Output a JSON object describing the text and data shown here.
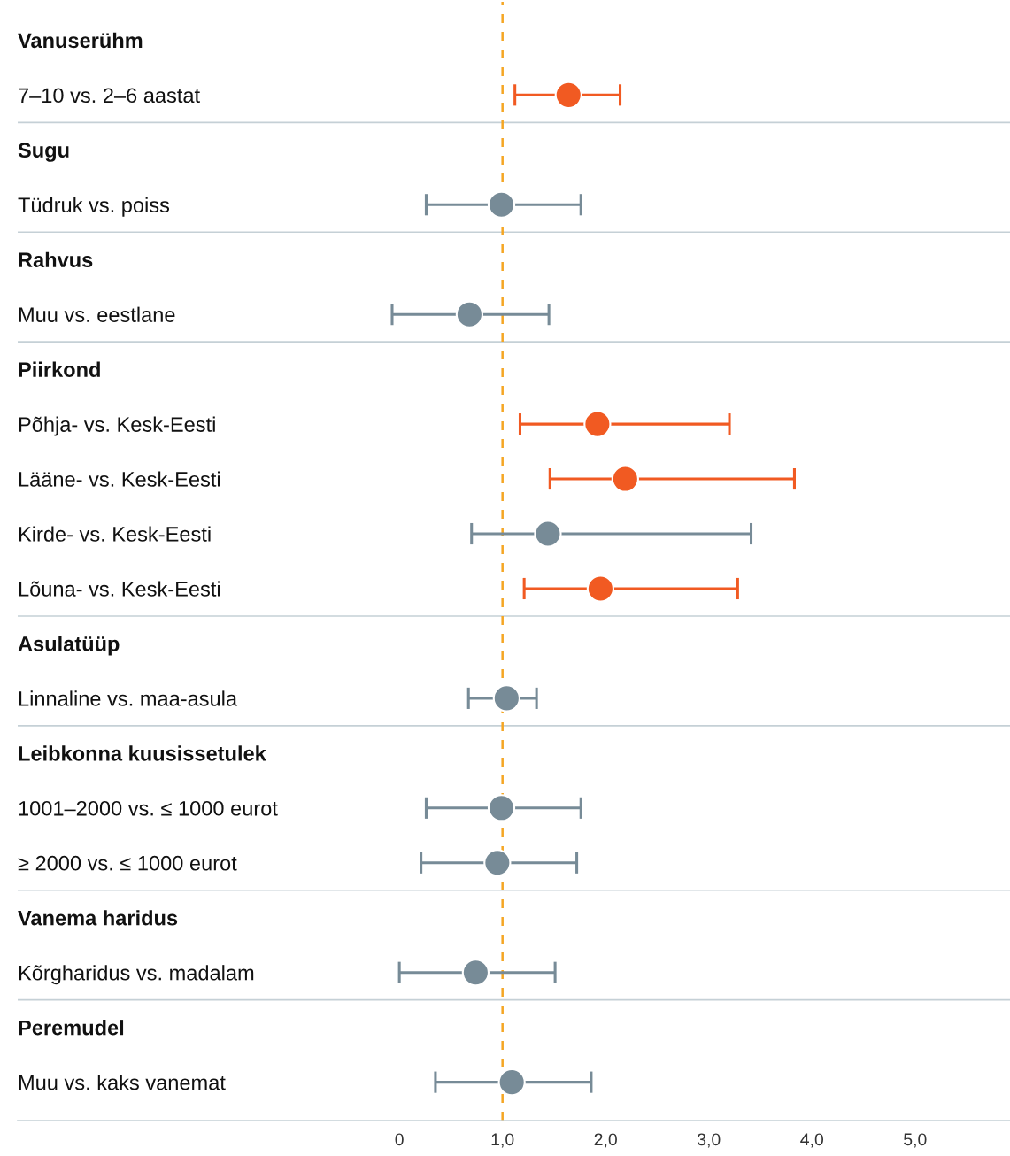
{
  "chart_data": {
    "type": "scatter",
    "orientation": "horizontal",
    "categories": [
      "Vanuserühm",
      "7–10 vs. 2–6 aastat",
      "Sugu",
      "Tüdruk vs. poiss",
      "Rahvus",
      "Muu vs. eestlane",
      "Piirkond",
      "Põhja- vs. Kesk-Eesti",
      "Lääne- vs. Kesk-Eesti",
      "Kirde- vs. Kesk-Eesti",
      "Lõuna- vs. Kesk-Eesti",
      "Asulatüüp",
      "Linnaline vs. maa-asula",
      "Leibkonna kuusissetulek",
      "1001–2000 vs. ≤ 1000 eurot",
      "≥ 2000 vs. ≤ 1000 eurot",
      "Vanema haridus",
      "Kõrgharidus vs. madalam",
      "Peremudel",
      "Muu vs. kaks vanemat"
    ],
    "values": [
      null,
      1.64,
      null,
      0.99,
      null,
      0.68,
      null,
      1.92,
      2.19,
      1.44,
      1.95,
      null,
      1.04,
      null,
      0.99,
      0.95,
      null,
      0.74,
      null,
      1.09
    ],
    "errors": [
      null,
      [
        1.12,
        2.14
      ],
      null,
      [
        0.26,
        1.76
      ],
      null,
      [
        -0.07,
        1.45
      ],
      null,
      [
        1.17,
        3.2
      ],
      [
        1.46,
        3.83
      ],
      [
        0.7,
        3.41
      ],
      [
        1.21,
        3.28
      ],
      null,
      [
        0.67,
        1.33
      ],
      null,
      [
        0.26,
        1.76
      ],
      [
        0.21,
        1.72
      ],
      null,
      [
        0.0,
        1.51
      ],
      null,
      [
        0.35,
        1.86
      ]
    ],
    "colors": [
      null,
      "#f15a22",
      null,
      "#778b97",
      null,
      "#778b97",
      null,
      "#f15a22",
      "#f15a22",
      "#778b97",
      "#f15a22",
      null,
      "#778b97",
      null,
      "#778b97",
      "#778b97",
      null,
      "#778b97",
      null,
      "#778b97"
    ],
    "marker": "circle",
    "xlim": [
      -3.7,
      5.92
    ],
    "xticks": [
      0,
      {
        "value": 1,
        "label": "1,0"
      },
      {
        "value": 2,
        "label": "2,0"
      },
      {
        "value": 3,
        "label": "3,0"
      },
      {
        "value": 4,
        "label": "4,0"
      },
      {
        "value": 5,
        "label": "5,0"
      }
    ],
    "ref_lines": [
      {
        "axis": "x",
        "value": 1,
        "color": "#f5a623",
        "line_style": "dashed"
      }
    ]
  }
}
